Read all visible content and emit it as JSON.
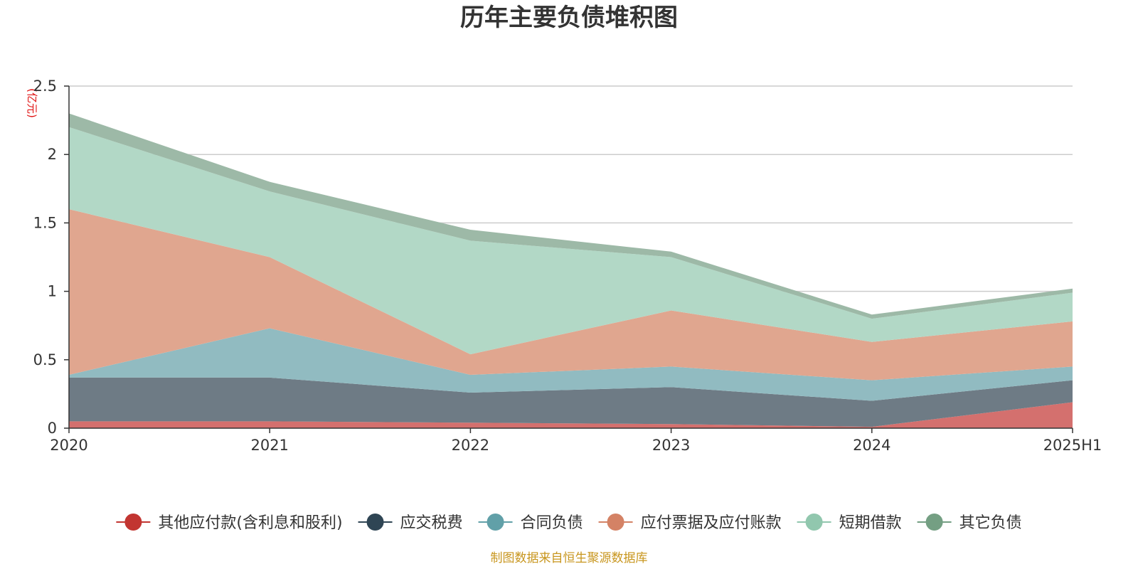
{
  "chart_data": {
    "type": "area",
    "stacked": true,
    "title": "历年主要负债堆积图",
    "unit_label": "(亿元)",
    "x": [
      "2020",
      "2021",
      "2022",
      "2023",
      "2024",
      "2025H1"
    ],
    "ylim": [
      0,
      2.5
    ],
    "yticks": [
      "0",
      "0.5",
      "1",
      "1.5",
      "2",
      "2.5"
    ],
    "grid": true,
    "legend_position": "bottom",
    "source_note": "制图数据来自恒生聚源数据库",
    "series": [
      {
        "name": "其他应付款(含利息和股利)",
        "color": "#c23531",
        "fill": "#d4706e",
        "values": [
          0.05,
          0.05,
          0.04,
          0.03,
          0.01,
          0.19
        ]
      },
      {
        "name": "应交税费",
        "color": "#2f4554",
        "fill": "#6e7b85",
        "values": [
          0.32,
          0.32,
          0.22,
          0.27,
          0.19,
          0.16
        ]
      },
      {
        "name": "合同负债",
        "color": "#61a0a8",
        "fill": "#91bbc1",
        "values": [
          0.02,
          0.36,
          0.13,
          0.15,
          0.15,
          0.1
        ]
      },
      {
        "name": "应付票据及应付账款",
        "color": "#d48265",
        "fill": "#e0a68f",
        "values": [
          1.21,
          0.52,
          0.15,
          0.41,
          0.28,
          0.33
        ]
      },
      {
        "name": "短期借款",
        "color": "#91c7ae",
        "fill": "#b2d8c6",
        "values": [
          0.6,
          0.48,
          0.83,
          0.39,
          0.17,
          0.21
        ]
      },
      {
        "name": "其它负债",
        "color": "#749f83",
        "fill": "#9db9a7",
        "values": [
          0.1,
          0.07,
          0.08,
          0.04,
          0.03,
          0.03
        ]
      }
    ]
  }
}
